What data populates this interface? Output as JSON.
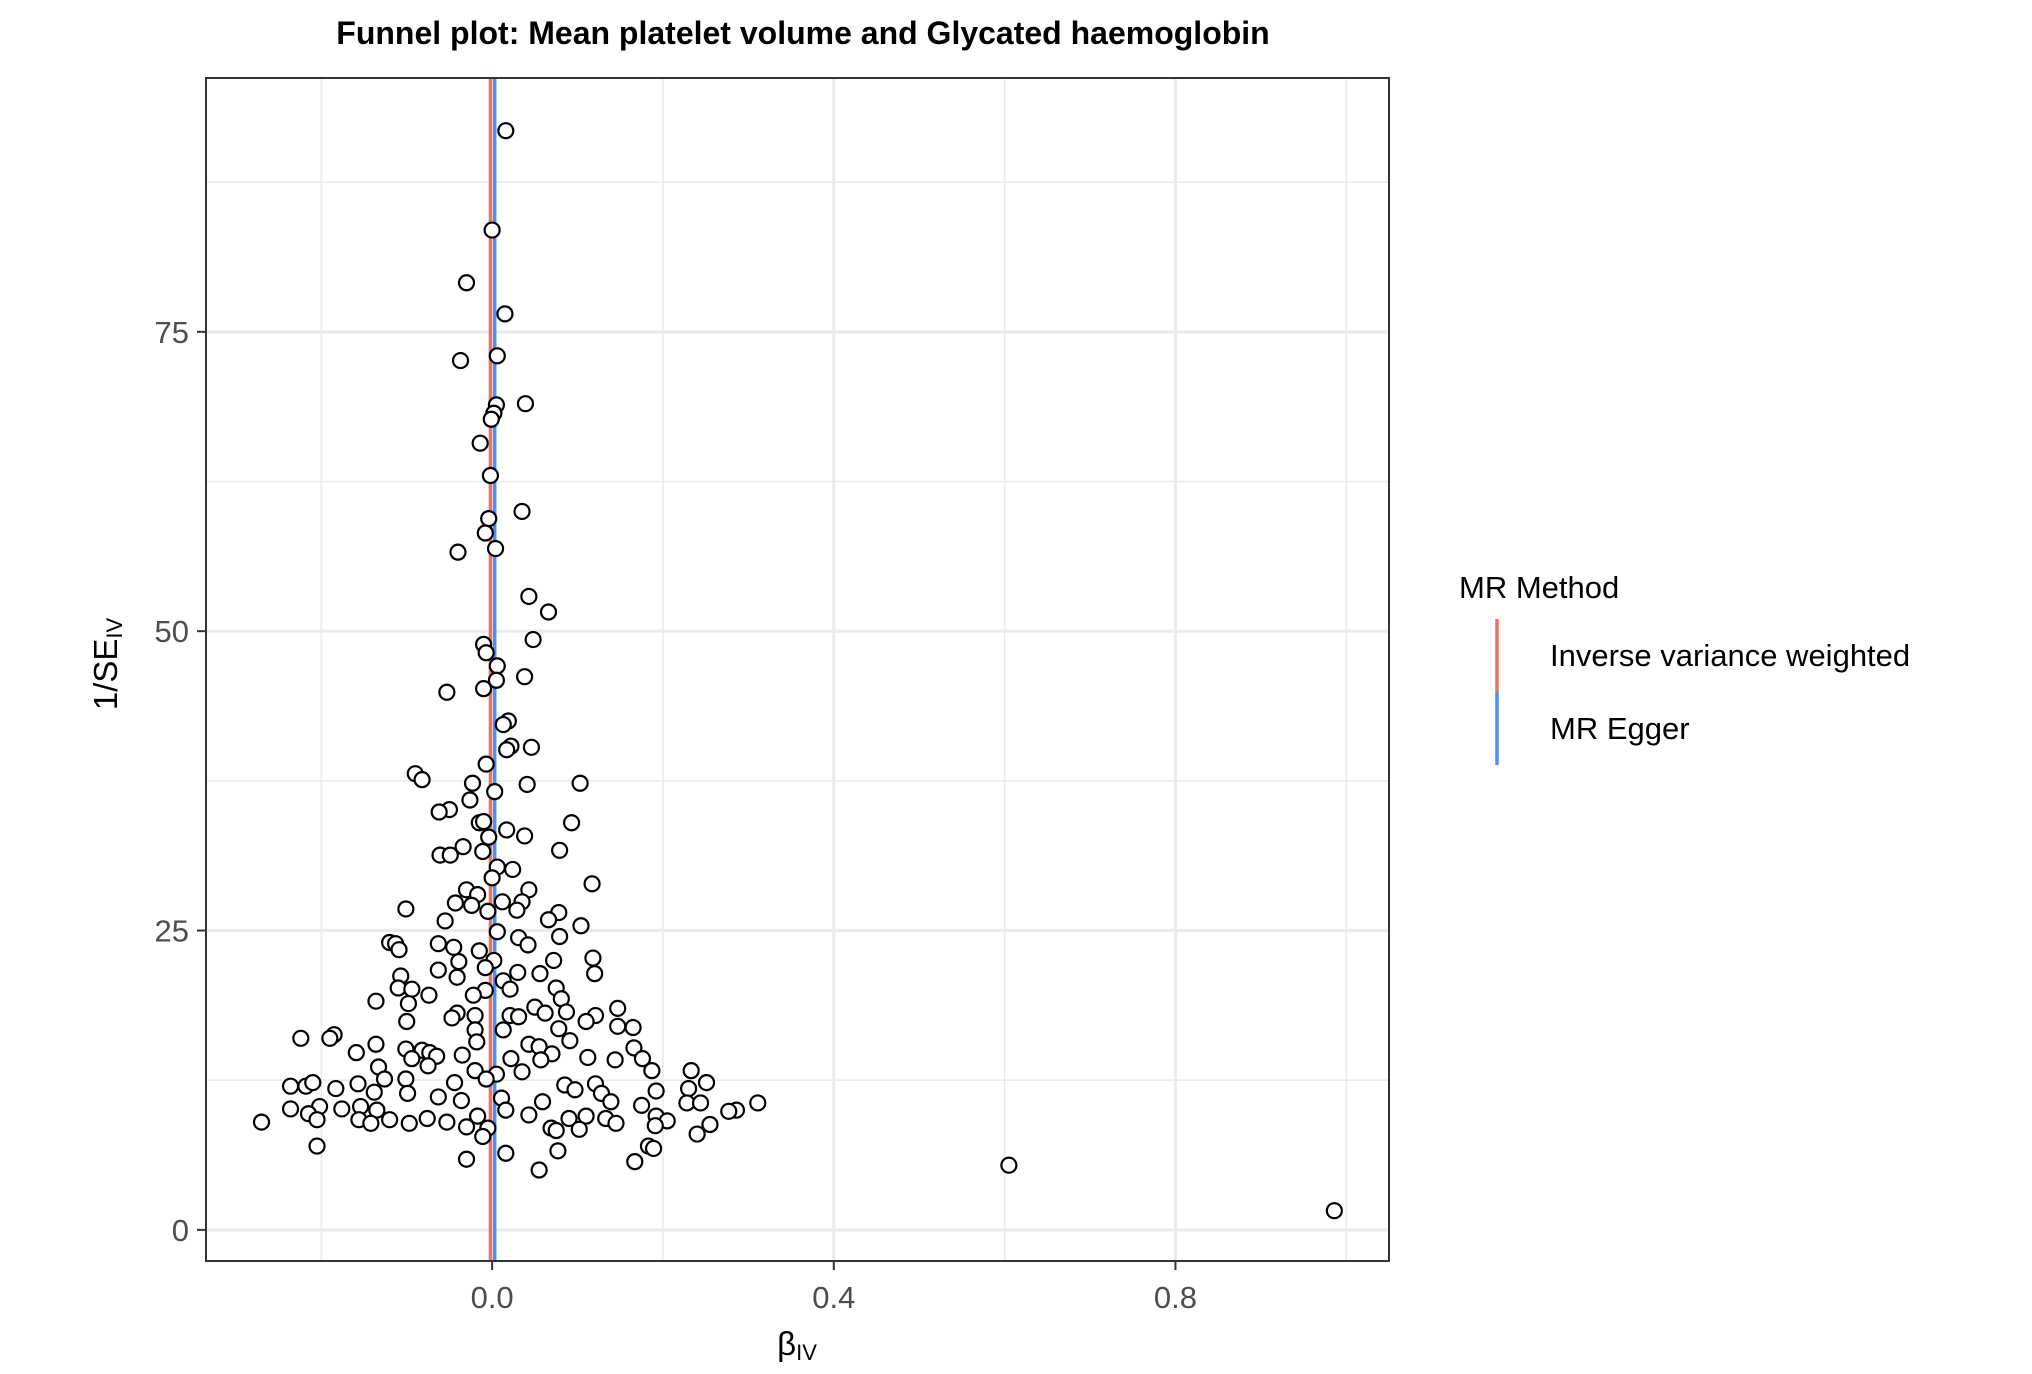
{
  "chart_data": {
    "type": "scatter",
    "title": "Funnel plot: Mean platelet volume and Glycated haemoglobin",
    "xlabel": {
      "main": "β",
      "sub": "IV"
    },
    "ylabel": {
      "main": "1/SE",
      "sub": "IV"
    },
    "xlim": [
      -0.335,
      1.05
    ],
    "ylim": [
      -2.6,
      96.2
    ],
    "x_ticks": [
      {
        "value": 0.0,
        "label": "0.0"
      },
      {
        "value": 0.4,
        "label": "0.4"
      },
      {
        "value": 0.8,
        "label": "0.8"
      }
    ],
    "y_ticks": [
      {
        "value": 0,
        "label": "0"
      },
      {
        "value": 25,
        "label": "25"
      },
      {
        "value": 50,
        "label": "50"
      },
      {
        "value": 75,
        "label": "75"
      }
    ],
    "x_minor": [
      -0.2,
      0.2,
      0.6,
      1.0
    ],
    "y_minor": [
      12.5,
      37.5,
      62.5,
      87.5
    ],
    "grid": true,
    "legend": {
      "title": "MR Method",
      "position": "right",
      "items": [
        {
          "label": "Inverse variance weighted",
          "color": "#e8756a"
        },
        {
          "label": "MR Egger",
          "color": "#4f8ef2"
        }
      ]
    },
    "vlines": [
      {
        "method": "Inverse variance weighted",
        "x": -0.002,
        "color": "#e8756a"
      },
      {
        "method": "MR Egger",
        "x": 0.003,
        "color": "#4f8ef2"
      }
    ],
    "points": [
      [
        0.016,
        91.8
      ],
      [
        0.0,
        83.5
      ],
      [
        -0.03,
        79.1
      ],
      [
        0.015,
        76.5
      ],
      [
        -0.037,
        72.6
      ],
      [
        0.006,
        73.0
      ],
      [
        0.039,
        69.0
      ],
      [
        0.005,
        68.9
      ],
      [
        0.002,
        68.2
      ],
      [
        -0.001,
        67.7
      ],
      [
        -0.014,
        65.7
      ],
      [
        -0.002,
        63.0
      ],
      [
        0.035,
        60.0
      ],
      [
        -0.004,
        59.4
      ],
      [
        -0.008,
        58.2
      ],
      [
        0.004,
        56.9
      ],
      [
        -0.04,
        56.6
      ],
      [
        0.043,
        52.9
      ],
      [
        0.066,
        51.6
      ],
      [
        0.048,
        49.3
      ],
      [
        -0.01,
        48.9
      ],
      [
        -0.007,
        48.2
      ],
      [
        0.006,
        47.1
      ],
      [
        0.038,
        46.2
      ],
      [
        0.005,
        45.9
      ],
      [
        -0.01,
        45.2
      ],
      [
        -0.053,
        44.9
      ],
      [
        0.019,
        42.5
      ],
      [
        0.013,
        42.2
      ],
      [
        0.022,
        40.4
      ],
      [
        0.046,
        40.3
      ],
      [
        0.017,
        40.1
      ],
      [
        0.103,
        37.3
      ],
      [
        -0.007,
        38.9
      ],
      [
        -0.09,
        38.1
      ],
      [
        -0.082,
        37.6
      ],
      [
        0.041,
        37.2
      ],
      [
        0.003,
        36.6
      ],
      [
        -0.023,
        37.3
      ],
      [
        -0.026,
        35.9
      ],
      [
        -0.05,
        35.1
      ],
      [
        -0.062,
        34.9
      ],
      [
        0.093,
        34.0
      ],
      [
        -0.015,
        34.0
      ],
      [
        -0.01,
        34.1
      ],
      [
        0.017,
        33.4
      ],
      [
        -0.004,
        32.8
      ],
      [
        0.038,
        32.9
      ],
      [
        -0.034,
        32.0
      ],
      [
        0.079,
        31.7
      ],
      [
        -0.061,
        31.3
      ],
      [
        -0.049,
        31.3
      ],
      [
        -0.011,
        31.6
      ],
      [
        0.024,
        30.1
      ],
      [
        0.006,
        30.3
      ],
      [
        0.0,
        29.4
      ],
      [
        0.117,
        28.9
      ],
      [
        0.043,
        28.4
      ],
      [
        -0.03,
        28.4
      ],
      [
        -0.017,
        28.0
      ],
      [
        0.012,
        27.4
      ],
      [
        0.035,
        27.4
      ],
      [
        -0.043,
        27.3
      ],
      [
        -0.024,
        27.1
      ],
      [
        -0.005,
        26.6
      ],
      [
        0.029,
        26.7
      ],
      [
        0.078,
        26.5
      ],
      [
        0.066,
        25.9
      ],
      [
        -0.101,
        26.8
      ],
      [
        -0.055,
        25.8
      ],
      [
        0.104,
        25.4
      ],
      [
        0.006,
        24.9
      ],
      [
        0.079,
        24.5
      ],
      [
        0.031,
        24.4
      ],
      [
        -0.12,
        24.0
      ],
      [
        -0.113,
        23.9
      ],
      [
        -0.063,
        23.9
      ],
      [
        -0.045,
        23.6
      ],
      [
        0.042,
        23.8
      ],
      [
        -0.015,
        23.3
      ],
      [
        -0.109,
        23.4
      ],
      [
        0.118,
        22.7
      ],
      [
        0.072,
        22.5
      ],
      [
        0.002,
        22.5
      ],
      [
        -0.039,
        22.4
      ],
      [
        -0.008,
        21.9
      ],
      [
        0.03,
        21.5
      ],
      [
        -0.063,
        21.7
      ],
      [
        0.056,
        21.4
      ],
      [
        0.12,
        21.4
      ],
      [
        -0.107,
        21.2
      ],
      [
        -0.041,
        21.1
      ],
      [
        0.013,
        20.8
      ],
      [
        -0.11,
        20.2
      ],
      [
        -0.094,
        20.1
      ],
      [
        0.075,
        20.2
      ],
      [
        -0.008,
        20.0
      ],
      [
        0.021,
        20.1
      ],
      [
        -0.022,
        19.6
      ],
      [
        0.081,
        19.3
      ],
      [
        -0.074,
        19.6
      ],
      [
        -0.136,
        19.1
      ],
      [
        -0.098,
        18.9
      ],
      [
        0.05,
        18.6
      ],
      [
        0.062,
        18.1
      ],
      [
        -0.041,
        18.1
      ],
      [
        -0.02,
        17.9
      ],
      [
        0.147,
        18.5
      ],
      [
        0.087,
        18.2
      ],
      [
        0.121,
        17.9
      ],
      [
        0.021,
        17.9
      ],
      [
        -0.047,
        17.7
      ],
      [
        -0.1,
        17.4
      ],
      [
        0.11,
        17.4
      ],
      [
        0.031,
        17.8
      ],
      [
        0.147,
        17.0
      ],
      [
        0.165,
        16.9
      ],
      [
        0.078,
        16.8
      ],
      [
        -0.02,
        16.7
      ],
      [
        0.013,
        16.7
      ],
      [
        -0.185,
        16.3
      ],
      [
        -0.19,
        16.0
      ],
      [
        -0.224,
        16.0
      ],
      [
        0.091,
        15.8
      ],
      [
        -0.018,
        15.7
      ],
      [
        0.043,
        15.5
      ],
      [
        -0.136,
        15.5
      ],
      [
        0.055,
        15.3
      ],
      [
        0.166,
        15.2
      ],
      [
        -0.101,
        15.1
      ],
      [
        -0.082,
        15.0
      ],
      [
        -0.159,
        14.8
      ],
      [
        -0.073,
        14.8
      ],
      [
        -0.035,
        14.6
      ],
      [
        0.07,
        14.7
      ],
      [
        0.112,
        14.4
      ],
      [
        -0.065,
        14.5
      ],
      [
        0.022,
        14.3
      ],
      [
        -0.094,
        14.3
      ],
      [
        0.144,
        14.2
      ],
      [
        0.176,
        14.3
      ],
      [
        0.057,
        14.2
      ],
      [
        -0.133,
        13.6
      ],
      [
        -0.075,
        13.7
      ],
      [
        -0.02,
        13.3
      ],
      [
        0.187,
        13.3
      ],
      [
        0.035,
        13.2
      ],
      [
        0.233,
        13.3
      ],
      [
        0.005,
        13.0
      ],
      [
        -0.126,
        12.6
      ],
      [
        -0.101,
        12.6
      ],
      [
        -0.007,
        12.6
      ],
      [
        -0.044,
        12.3
      ],
      [
        0.085,
        12.1
      ],
      [
        0.121,
        12.2
      ],
      [
        -0.157,
        12.2
      ],
      [
        0.251,
        12.3
      ],
      [
        0.23,
        11.8
      ],
      [
        0.097,
        11.7
      ],
      [
        -0.236,
        12.0
      ],
      [
        -0.218,
        12.0
      ],
      [
        -0.21,
        12.3
      ],
      [
        -0.183,
        11.8
      ],
      [
        0.192,
        11.6
      ],
      [
        -0.138,
        11.5
      ],
      [
        -0.099,
        11.4
      ],
      [
        0.128,
        11.4
      ],
      [
        -0.063,
        11.1
      ],
      [
        0.011,
        11.0
      ],
      [
        -0.036,
        10.8
      ],
      [
        0.059,
        10.7
      ],
      [
        0.139,
        10.7
      ],
      [
        0.228,
        10.6
      ],
      [
        0.311,
        10.6
      ],
      [
        0.244,
        10.6
      ],
      [
        0.175,
        10.4
      ],
      [
        -0.154,
        10.3
      ],
      [
        -0.202,
        10.3
      ],
      [
        -0.236,
        10.1
      ],
      [
        0.286,
        10.0
      ],
      [
        -0.176,
        10.1
      ],
      [
        -0.135,
        10.0
      ],
      [
        0.016,
        10.0
      ],
      [
        0.277,
        9.9
      ],
      [
        -0.215,
        9.7
      ],
      [
        0.043,
        9.6
      ],
      [
        -0.017,
        9.5
      ],
      [
        0.11,
        9.5
      ],
      [
        0.192,
        9.5
      ],
      [
        -0.076,
        9.3
      ],
      [
        0.09,
        9.3
      ],
      [
        -0.205,
        9.2
      ],
      [
        -0.156,
        9.2
      ],
      [
        -0.12,
        9.2
      ],
      [
        0.133,
        9.3
      ],
      [
        0.205,
        9.1
      ],
      [
        -0.27,
        9.0
      ],
      [
        -0.142,
        8.9
      ],
      [
        -0.097,
        8.9
      ],
      [
        0.145,
        8.9
      ],
      [
        -0.053,
        9.0
      ],
      [
        0.255,
        8.8
      ],
      [
        0.191,
        8.7
      ],
      [
        -0.03,
        8.6
      ],
      [
        -0.005,
        8.5
      ],
      [
        0.069,
        8.5
      ],
      [
        0.075,
        8.3
      ],
      [
        0.102,
        8.4
      ],
      [
        0.24,
        8.0
      ],
      [
        -0.011,
        7.8
      ],
      [
        0.183,
        7.0
      ],
      [
        0.189,
        6.8
      ],
      [
        0.077,
        6.6
      ],
      [
        0.016,
        6.4
      ],
      [
        -0.205,
        7.0
      ],
      [
        0.167,
        5.7
      ],
      [
        -0.03,
        5.9
      ],
      [
        0.055,
        5.0
      ],
      [
        0.605,
        5.4
      ],
      [
        0.986,
        1.6
      ]
    ],
    "point_color": "#ffffff",
    "point_stroke": "#000000"
  }
}
